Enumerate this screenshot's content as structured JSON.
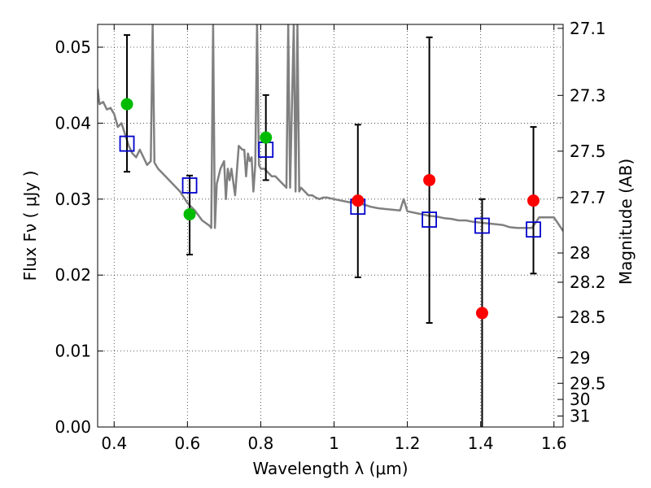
{
  "chart_data": {
    "type": "scatter",
    "title": "",
    "xlabel": "Wavelength  λ (μm)",
    "ylabel": "Flux  Fν  ( μJy )",
    "y2label": "Magnitude (AB)",
    "xlim": [
      0.355,
      1.625
    ],
    "ylim": [
      0.0,
      0.053
    ],
    "grid": true,
    "x_ticks": [
      {
        "value": 0.4,
        "label": "0.4"
      },
      {
        "value": 0.6,
        "label": "0.6"
      },
      {
        "value": 0.8,
        "label": "0.8"
      },
      {
        "value": 1.0,
        "label": "1"
      },
      {
        "value": 1.2,
        "label": "1.2"
      },
      {
        "value": 1.4,
        "label": "1.4"
      },
      {
        "value": 1.6,
        "label": "1.6"
      }
    ],
    "y_ticks": [
      {
        "value": 0.0,
        "label": "0.00"
      },
      {
        "value": 0.01,
        "label": "0.01"
      },
      {
        "value": 0.02,
        "label": "0.02"
      },
      {
        "value": 0.03,
        "label": "0.03"
      },
      {
        "value": 0.04,
        "label": "0.04"
      },
      {
        "value": 0.05,
        "label": "0.05"
      }
    ],
    "y2_ticks": [
      {
        "value": 27.1,
        "label": "27.1"
      },
      {
        "value": 27.3,
        "label": "27.3"
      },
      {
        "value": 27.5,
        "label": "27.5"
      },
      {
        "value": 27.7,
        "label": "27.7"
      },
      {
        "value": 28.0,
        "label": "28"
      },
      {
        "value": 28.2,
        "label": "28.2"
      },
      {
        "value": 28.5,
        "label": "28.5"
      },
      {
        "value": 29.0,
        "label": "29"
      },
      {
        "value": 29.5,
        "label": "29.5"
      },
      {
        "value": 30.0,
        "label": "30"
      },
      {
        "value": 31.0,
        "label": "31"
      }
    ],
    "model_spectrum": {
      "color": "#808080",
      "points": [
        [
          0.355,
          0.0445
        ],
        [
          0.36,
          0.0425
        ],
        [
          0.37,
          0.0428
        ],
        [
          0.38,
          0.0418
        ],
        [
          0.39,
          0.042
        ],
        [
          0.4,
          0.0412
        ],
        [
          0.41,
          0.0395
        ],
        [
          0.42,
          0.04
        ],
        [
          0.43,
          0.0385
        ],
        [
          0.44,
          0.037
        ],
        [
          0.45,
          0.036
        ],
        [
          0.46,
          0.0355
        ],
        [
          0.47,
          0.0365
        ],
        [
          0.48,
          0.0355
        ],
        [
          0.49,
          0.0345
        ],
        [
          0.5,
          0.035
        ],
        [
          0.505,
          0.053
        ],
        [
          0.51,
          0.0348
        ],
        [
          0.52,
          0.034
        ],
        [
          0.53,
          0.0335
        ],
        [
          0.54,
          0.033
        ],
        [
          0.55,
          0.0325
        ],
        [
          0.56,
          0.032
        ],
        [
          0.58,
          0.031
        ],
        [
          0.6,
          0.0295
        ],
        [
          0.62,
          0.0285
        ],
        [
          0.64,
          0.0272
        ],
        [
          0.66,
          0.0265
        ],
        [
          0.665,
          0.0262
        ],
        [
          0.67,
          0.053
        ],
        [
          0.675,
          0.0262
        ],
        [
          0.68,
          0.032
        ],
        [
          0.69,
          0.034
        ],
        [
          0.7,
          0.035
        ],
        [
          0.705,
          0.03
        ],
        [
          0.71,
          0.034
        ],
        [
          0.715,
          0.0325
        ],
        [
          0.72,
          0.034
        ],
        [
          0.73,
          0.0305
        ],
        [
          0.74,
          0.037
        ],
        [
          0.75,
          0.0365
        ],
        [
          0.755,
          0.0365
        ],
        [
          0.76,
          0.033
        ],
        [
          0.765,
          0.036
        ],
        [
          0.77,
          0.035
        ],
        [
          0.775,
          0.0355
        ],
        [
          0.78,
          0.031
        ],
        [
          0.785,
          0.0345
        ],
        [
          0.79,
          0.053
        ],
        [
          0.795,
          0.0345
        ],
        [
          0.8,
          0.034
        ],
        [
          0.81,
          0.034
        ],
        [
          0.82,
          0.0335
        ],
        [
          0.83,
          0.033
        ],
        [
          0.84,
          0.033
        ],
        [
          0.85,
          0.0325
        ],
        [
          0.86,
          0.032
        ],
        [
          0.87,
          0.0315
        ],
        [
          0.875,
          0.053
        ],
        [
          0.88,
          0.0315
        ],
        [
          0.89,
          0.053
        ],
        [
          0.895,
          0.031
        ],
        [
          0.9,
          0.053
        ],
        [
          0.905,
          0.031
        ],
        [
          0.91,
          0.0315
        ],
        [
          0.92,
          0.031
        ],
        [
          0.93,
          0.0305
        ],
        [
          0.94,
          0.0305
        ],
        [
          0.95,
          0.0302
        ],
        [
          0.96,
          0.03
        ],
        [
          0.97,
          0.0302
        ],
        [
          0.98,
          0.0302
        ],
        [
          1.0,
          0.03
        ],
        [
          1.02,
          0.0298
        ],
        [
          1.04,
          0.0296
        ],
        [
          1.06,
          0.0295
        ],
        [
          1.08,
          0.0293
        ],
        [
          1.1,
          0.029
        ],
        [
          1.12,
          0.0288
        ],
        [
          1.14,
          0.0287
        ],
        [
          1.16,
          0.0286
        ],
        [
          1.18,
          0.0285
        ],
        [
          1.19,
          0.03
        ],
        [
          1.2,
          0.0284
        ],
        [
          1.22,
          0.0282
        ],
        [
          1.24,
          0.028
        ],
        [
          1.26,
          0.0278
        ],
        [
          1.28,
          0.0277
        ],
        [
          1.3,
          0.0275
        ],
        [
          1.32,
          0.0274
        ],
        [
          1.34,
          0.0272
        ],
        [
          1.36,
          0.0272
        ],
        [
          1.38,
          0.027
        ],
        [
          1.4,
          0.0269
        ],
        [
          1.42,
          0.0268
        ],
        [
          1.44,
          0.0267
        ],
        [
          1.46,
          0.0266
        ],
        [
          1.48,
          0.0263
        ],
        [
          1.5,
          0.0262
        ],
        [
          1.52,
          0.0262
        ],
        [
          1.54,
          0.0262
        ],
        [
          1.56,
          0.0276
        ],
        [
          1.58,
          0.0276
        ],
        [
          1.6,
          0.0276
        ],
        [
          1.625,
          0.0258
        ]
      ]
    },
    "model_photometry": {
      "marker": "open-square",
      "color": "#0000cc",
      "x": [
        0.435,
        0.606,
        0.814,
        1.065,
        1.26,
        1.404,
        1.544
      ],
      "y": [
        0.0373,
        0.0318,
        0.0365,
        0.029,
        0.0273,
        0.0265,
        0.026
      ]
    },
    "observed_error_bars": {
      "color": "#000000",
      "x": [
        0.435,
        0.606,
        0.814,
        1.065,
        1.26,
        1.404,
        1.544
      ],
      "low": [
        0.0336,
        0.0227,
        0.0325,
        0.0197,
        0.0137,
        0.0,
        0.0202
      ],
      "high": [
        0.0516,
        0.0331,
        0.0437,
        0.0398,
        0.0513,
        0.03,
        0.0395
      ]
    },
    "observed_optical": {
      "marker": "filled-circle",
      "color": "#00bb00",
      "x": [
        0.435,
        0.606,
        0.814
      ],
      "y": [
        0.0425,
        0.028,
        0.0381
      ]
    },
    "observed_nir": {
      "marker": "filled-circle",
      "color": "#ff0000",
      "x": [
        1.065,
        1.26,
        1.404,
        1.544
      ],
      "y": [
        0.0298,
        0.0325,
        0.015,
        0.0298
      ]
    }
  }
}
